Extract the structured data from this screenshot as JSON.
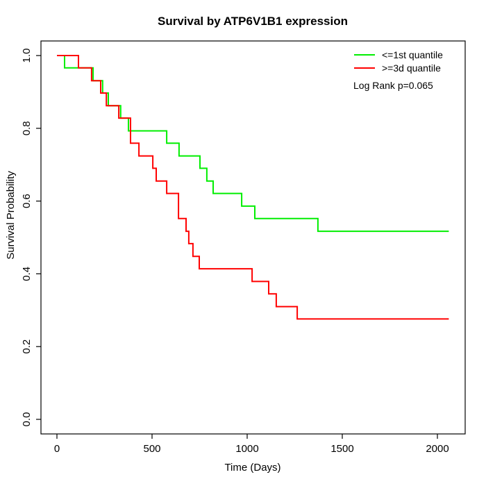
{
  "chart_data": {
    "type": "line",
    "subtype": "kaplan-meier-step",
    "title": "Survival by ATP6V1B1 expression",
    "xlabel": "Time (Days)",
    "ylabel": "Survival Probability",
    "xlim": [
      0,
      2100
    ],
    "ylim": [
      0.0,
      1.0
    ],
    "x_ticks": [
      0,
      500,
      1000,
      1500,
      2000
    ],
    "y_ticks": [
      0.0,
      0.2,
      0.4,
      0.6,
      0.8,
      1.0
    ],
    "grid": false,
    "legend_position": "topright",
    "annotation": "Log Rank p=0.065",
    "series": [
      {
        "name": "<=1st quantile",
        "color": "#00ee00",
        "end_time": 2060,
        "steps": [
          {
            "t": 0,
            "p": 1.0
          },
          {
            "t": 40,
            "p": 0.966
          },
          {
            "t": 190,
            "p": 0.931
          },
          {
            "t": 240,
            "p": 0.897
          },
          {
            "t": 270,
            "p": 0.862
          },
          {
            "t": 335,
            "p": 0.828
          },
          {
            "t": 376,
            "p": 0.793
          },
          {
            "t": 577,
            "p": 0.759
          },
          {
            "t": 642,
            "p": 0.724
          },
          {
            "t": 752,
            "p": 0.69
          },
          {
            "t": 788,
            "p": 0.655
          },
          {
            "t": 821,
            "p": 0.621
          },
          {
            "t": 971,
            "p": 0.586
          },
          {
            "t": 1040,
            "p": 0.552
          },
          {
            "t": 1372,
            "p": 0.517
          }
        ]
      },
      {
        "name": ">=3d quantile",
        "color": "#ff0000",
        "end_time": 2060,
        "steps": [
          {
            "t": 0,
            "p": 1.0
          },
          {
            "t": 113,
            "p": 0.966
          },
          {
            "t": 182,
            "p": 0.931
          },
          {
            "t": 230,
            "p": 0.897
          },
          {
            "t": 260,
            "p": 0.862
          },
          {
            "t": 325,
            "p": 0.828
          },
          {
            "t": 387,
            "p": 0.759
          },
          {
            "t": 431,
            "p": 0.724
          },
          {
            "t": 504,
            "p": 0.69
          },
          {
            "t": 522,
            "p": 0.655
          },
          {
            "t": 577,
            "p": 0.621
          },
          {
            "t": 639,
            "p": 0.552
          },
          {
            "t": 679,
            "p": 0.517
          },
          {
            "t": 693,
            "p": 0.483
          },
          {
            "t": 715,
            "p": 0.448
          },
          {
            "t": 748,
            "p": 0.414
          },
          {
            "t": 1026,
            "p": 0.379
          },
          {
            "t": 1113,
            "p": 0.345
          },
          {
            "t": 1153,
            "p": 0.31
          },
          {
            "t": 1263,
            "p": 0.276
          }
        ]
      }
    ]
  }
}
